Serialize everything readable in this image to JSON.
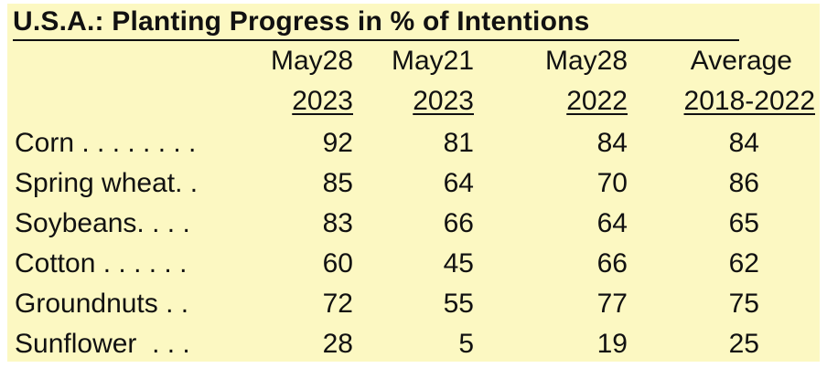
{
  "chart_data": {
    "type": "table",
    "title": "U.S.A.:  Planting Progress in % of  Intentions",
    "columns": [
      {
        "line1": "May28",
        "line2": "2023"
      },
      {
        "line1": "May21",
        "line2": "2023"
      },
      {
        "line1": "May28",
        "line2": "2022"
      },
      {
        "line1": "Average",
        "line2": "2018-2022"
      }
    ],
    "rows": [
      {
        "label": "Corn . . . . . . . .",
        "values": [
          "92",
          "81",
          "84",
          "84"
        ]
      },
      {
        "label": "Spring wheat. .",
        "values": [
          "85",
          "64",
          "70",
          "86"
        ]
      },
      {
        "label": "Soybeans. . . .",
        "values": [
          "83",
          "66",
          "64",
          "65"
        ]
      },
      {
        "label": "Cotton . . . . . .",
        "values": [
          "60",
          "45",
          "66",
          "62"
        ]
      },
      {
        "label": "Groundnuts . .",
        "values": [
          "72",
          "55",
          "77",
          "75"
        ]
      },
      {
        "label": "Sunflower  . . .",
        "values": [
          "28",
          "5",
          "19",
          "25"
        ]
      }
    ]
  },
  "colors": {
    "panel_background": "#fcf8c2",
    "text": "#111111"
  }
}
